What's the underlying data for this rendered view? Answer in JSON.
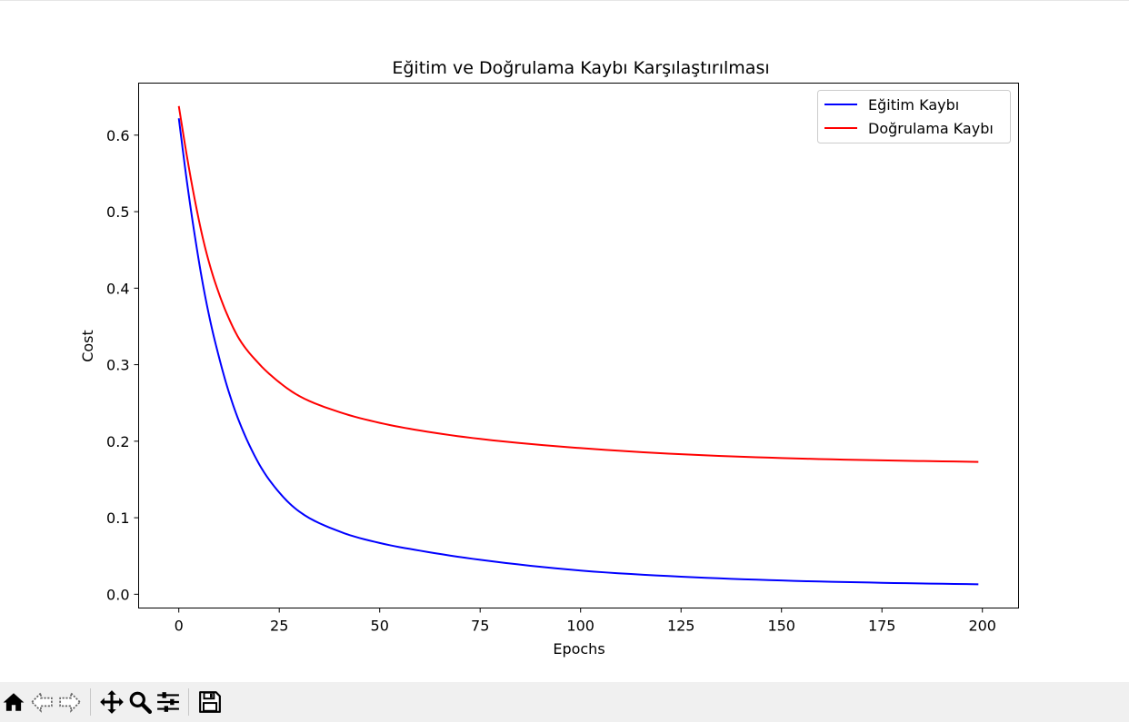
{
  "chart_data": {
    "type": "line",
    "title": "Eğitim ve Doğrulama Kaybı Karşılaştırılması",
    "xlabel": "Epochs",
    "ylabel": "Cost",
    "xlim": [
      -10,
      209
    ],
    "ylim": [
      -0.018,
      0.668
    ],
    "xticks": [
      0,
      25,
      50,
      75,
      100,
      125,
      150,
      175,
      200
    ],
    "yticks": [
      0.0,
      0.1,
      0.2,
      0.3,
      0.4,
      0.5,
      0.6
    ],
    "ytick_labels": [
      "0.0",
      "0.1",
      "0.2",
      "0.3",
      "0.4",
      "0.5",
      "0.6"
    ],
    "grid": false,
    "legend_position": "top-right",
    "series": [
      {
        "name": "Eğitim Kaybı",
        "color": "#0000ff",
        "x": [
          0,
          2,
          4,
          6,
          8,
          10,
          12,
          15,
          20,
          25,
          30,
          40,
          50,
          60,
          75,
          100,
          125,
          150,
          175,
          199
        ],
        "y": [
          0.622,
          0.54,
          0.468,
          0.405,
          0.353,
          0.31,
          0.272,
          0.226,
          0.17,
          0.133,
          0.108,
          0.082,
          0.067,
          0.057,
          0.045,
          0.031,
          0.023,
          0.018,
          0.015,
          0.013
        ]
      },
      {
        "name": "Doğrulama Kaybı",
        "color": "#ff0000",
        "x": [
          0,
          2,
          4,
          6,
          8,
          10,
          12,
          15,
          20,
          25,
          30,
          40,
          50,
          60,
          75,
          100,
          125,
          150,
          175,
          199
        ],
        "y": [
          0.638,
          0.573,
          0.515,
          0.465,
          0.425,
          0.393,
          0.366,
          0.334,
          0.301,
          0.277,
          0.259,
          0.238,
          0.224,
          0.214,
          0.203,
          0.191,
          0.183,
          0.178,
          0.175,
          0.173
        ]
      }
    ]
  },
  "toolbar": {
    "buttons": [
      {
        "name": "home-icon"
      },
      {
        "name": "back-icon"
      },
      {
        "name": "forward-icon"
      },
      {
        "name": "pan-icon"
      },
      {
        "name": "zoom-icon"
      },
      {
        "name": "configure-subplots-icon"
      },
      {
        "name": "save-icon"
      }
    ]
  }
}
